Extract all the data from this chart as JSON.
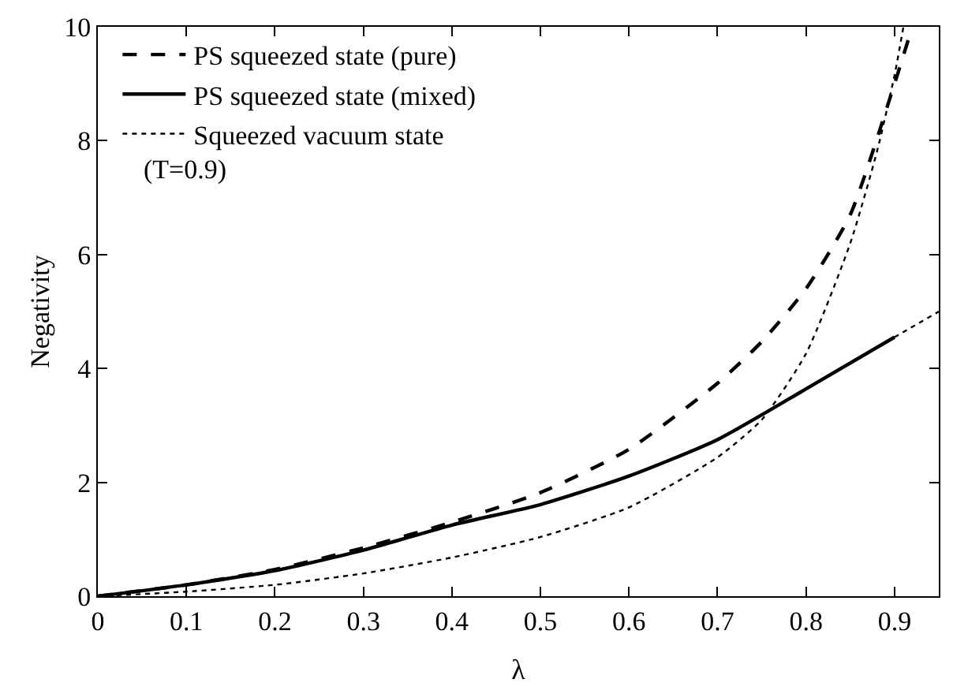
{
  "chart_data": {
    "type": "line",
    "xlabel": "λ",
    "ylabel": "Negativity",
    "xlim": [
      0,
      0.95
    ],
    "xticks": [
      0,
      0.1,
      0.2,
      0.3,
      0.4,
      0.5,
      0.6,
      0.7,
      0.8,
      0.9
    ],
    "ylim": [
      0,
      10
    ],
    "yticks": [
      0,
      2,
      4,
      6,
      8,
      10
    ],
    "legend": "top left",
    "marker": "none",
    "annotations": [
      "(T=0.9)"
    ],
    "series": [
      {
        "name": "PS squeezed state (pure)",
        "color": "#000000",
        "line_style": "dashed",
        "x": [
          0,
          0.1,
          0.2,
          0.3,
          0.4,
          0.5,
          0.6,
          0.7,
          0.75,
          0.8,
          0.85,
          0.9,
          0.92
        ],
        "values": [
          0,
          0.2,
          0.47,
          0.85,
          1.3,
          1.82,
          2.58,
          3.74,
          4.47,
          5.4,
          6.7,
          9.0,
          10
        ]
      },
      {
        "name": "PS squeezed state (mixed)",
        "color": "#000000",
        "line_style": "solid",
        "x": [
          0,
          0.1,
          0.2,
          0.3,
          0.4,
          0.5,
          0.6,
          0.7,
          0.8,
          0.9
        ],
        "values": [
          0,
          0.2,
          0.45,
          0.81,
          1.25,
          1.61,
          2.11,
          2.75,
          3.64,
          4.55
        ]
      },
      {
        "name": "Squeezed vacuum state",
        "color": "#000000",
        "line_style": "dotted",
        "x": [
          0,
          0.1,
          0.2,
          0.3,
          0.4,
          0.5,
          0.6,
          0.7,
          0.75,
          0.8,
          0.85,
          0.88,
          0.9,
          0.91
        ],
        "values": [
          0,
          0.08,
          0.2,
          0.4,
          0.68,
          1.04,
          1.56,
          2.44,
          3.1,
          4.26,
          6.2,
          7.8,
          9.15,
          10
        ]
      },
      {
        "color": "#000000",
        "line_style": "dotted",
        "x": [
          0.9,
          0.95
        ],
        "values": [
          4.55,
          5.0
        ]
      }
    ]
  }
}
